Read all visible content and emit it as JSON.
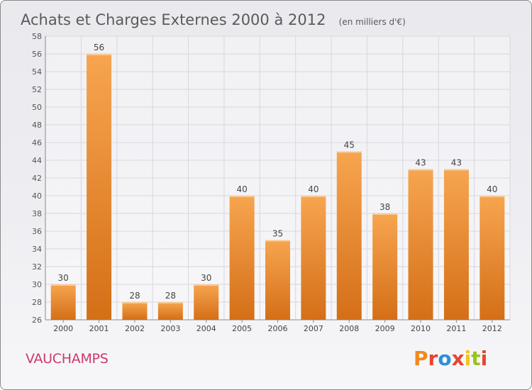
{
  "header": {
    "title": "Achats et Charges Externes 2000 à 2012",
    "subtitle": "(en milliers d'€)"
  },
  "footer": {
    "town": "VAUCHAMPS",
    "brand": "Proxiti",
    "brand_colors": [
      "#f08a1c",
      "#e8452c",
      "#2e8fd6",
      "#e8452c",
      "#f6c21a",
      "#9bc31c",
      "#e8452c"
    ]
  },
  "chart_data": {
    "type": "bar",
    "title": "Achats et Charges Externes 2000 à 2012",
    "subtitle": "(en milliers d'€)",
    "xlabel": "",
    "ylabel": "",
    "categories": [
      "2000",
      "2001",
      "2002",
      "2003",
      "2004",
      "2005",
      "2006",
      "2007",
      "2008",
      "2009",
      "2010",
      "2011",
      "2012"
    ],
    "values": [
      30,
      56,
      28,
      28,
      30,
      40,
      35,
      40,
      45,
      38,
      43,
      43,
      40
    ],
    "ylim": [
      26,
      58
    ],
    "yticks": [
      26,
      28,
      30,
      32,
      34,
      36,
      38,
      40,
      42,
      44,
      46,
      48,
      50,
      52,
      54,
      56,
      58
    ],
    "grid": true,
    "bar_color_light": "#f7a550",
    "bar_color_dark": "#d46f17"
  }
}
